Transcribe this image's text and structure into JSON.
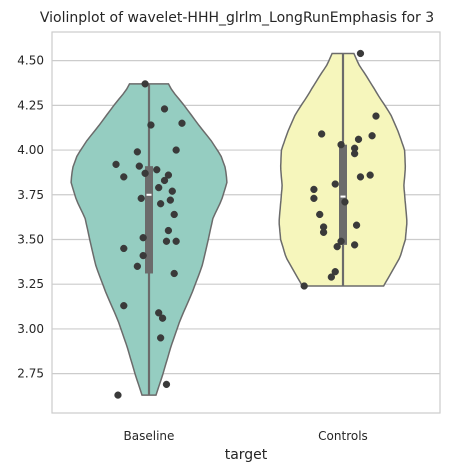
{
  "chart_data": {
    "type": "violin",
    "title": "Violinplot of wavelet-HHH_glrlm_LongRunEmphasis for 3",
    "xlabel": "target",
    "ylabel": "",
    "ylim": [
      2.53,
      4.66
    ],
    "yticks": [
      2.75,
      3.0,
      3.25,
      3.5,
      3.75,
      4.0,
      4.25,
      4.5
    ],
    "ytick_labels": [
      "2.75",
      "3.00",
      "3.25",
      "3.50",
      "3.75",
      "4.00",
      "4.25",
      "4.50"
    ],
    "grid": "horizontal",
    "categories": [
      "Baseline",
      "Controls"
    ],
    "groups": [
      {
        "name": "Baseline",
        "color": "#95cdc1",
        "range": [
          2.63,
          4.37
        ],
        "quartiles": [
          3.31,
          3.75,
          3.91
        ],
        "density": [
          [
            2.63,
            0.09
          ],
          [
            2.75,
            0.18
          ],
          [
            2.9,
            0.28
          ],
          [
            3.05,
            0.4
          ],
          [
            3.2,
            0.55
          ],
          [
            3.35,
            0.68
          ],
          [
            3.5,
            0.76
          ],
          [
            3.62,
            0.82
          ],
          [
            3.72,
            0.93
          ],
          [
            3.82,
            1.0
          ],
          [
            3.9,
            0.98
          ],
          [
            3.97,
            0.92
          ],
          [
            4.05,
            0.8
          ],
          [
            4.15,
            0.62
          ],
          [
            4.25,
            0.45
          ],
          [
            4.33,
            0.3
          ],
          [
            4.37,
            0.25
          ]
        ],
        "points": [
          {
            "x": -0.02,
            "y": 4.37
          },
          {
            "x": 0.08,
            "y": 4.23
          },
          {
            "x": 0.17,
            "y": 4.15
          },
          {
            "x": 0.01,
            "y": 4.14
          },
          {
            "x": -0.06,
            "y": 3.99
          },
          {
            "x": 0.14,
            "y": 4.0
          },
          {
            "x": -0.17,
            "y": 3.92
          },
          {
            "x": -0.05,
            "y": 3.91
          },
          {
            "x": 0.04,
            "y": 3.89
          },
          {
            "x": -0.02,
            "y": 3.87
          },
          {
            "x": 0.1,
            "y": 3.86
          },
          {
            "x": -0.13,
            "y": 3.85
          },
          {
            "x": 0.08,
            "y": 3.83
          },
          {
            "x": 0.05,
            "y": 3.79
          },
          {
            "x": 0.12,
            "y": 3.77
          },
          {
            "x": -0.04,
            "y": 3.73
          },
          {
            "x": 0.11,
            "y": 3.72
          },
          {
            "x": 0.06,
            "y": 3.7
          },
          {
            "x": 0.13,
            "y": 3.64
          },
          {
            "x": 0.1,
            "y": 3.55
          },
          {
            "x": -0.03,
            "y": 3.51
          },
          {
            "x": 0.09,
            "y": 3.49
          },
          {
            "x": 0.14,
            "y": 3.49
          },
          {
            "x": -0.13,
            "y": 3.45
          },
          {
            "x": -0.03,
            "y": 3.41
          },
          {
            "x": -0.06,
            "y": 3.35
          },
          {
            "x": 0.13,
            "y": 3.31
          },
          {
            "x": -0.13,
            "y": 3.13
          },
          {
            "x": 0.05,
            "y": 3.09
          },
          {
            "x": 0.07,
            "y": 3.06
          },
          {
            "x": 0.06,
            "y": 2.95
          },
          {
            "x": 0.09,
            "y": 2.69
          },
          {
            "x": -0.16,
            "y": 2.63
          }
        ]
      },
      {
        "name": "Controls",
        "color": "#f6f6bc",
        "range": [
          3.24,
          4.54
        ],
        "quartiles": [
          3.47,
          3.74,
          4.03
        ],
        "density": [
          [
            3.24,
            0.52
          ],
          [
            3.3,
            0.6
          ],
          [
            3.4,
            0.73
          ],
          [
            3.5,
            0.8
          ],
          [
            3.6,
            0.82
          ],
          [
            3.7,
            0.8
          ],
          [
            3.8,
            0.78
          ],
          [
            3.9,
            0.8
          ],
          [
            4.0,
            0.79
          ],
          [
            4.1,
            0.71
          ],
          [
            4.2,
            0.61
          ],
          [
            4.3,
            0.46
          ],
          [
            4.4,
            0.32
          ],
          [
            4.48,
            0.2
          ],
          [
            4.54,
            0.14
          ]
        ],
        "points": [
          {
            "x": 0.09,
            "y": 4.54
          },
          {
            "x": 0.17,
            "y": 4.19
          },
          {
            "x": -0.11,
            "y": 4.09
          },
          {
            "x": 0.15,
            "y": 4.08
          },
          {
            "x": 0.08,
            "y": 4.06
          },
          {
            "x": -0.01,
            "y": 4.03
          },
          {
            "x": 0.06,
            "y": 4.01
          },
          {
            "x": 0.06,
            "y": 3.98
          },
          {
            "x": 0.14,
            "y": 3.86
          },
          {
            "x": 0.09,
            "y": 3.85
          },
          {
            "x": -0.04,
            "y": 3.81
          },
          {
            "x": -0.15,
            "y": 3.78
          },
          {
            "x": -0.15,
            "y": 3.73
          },
          {
            "x": 0.01,
            "y": 3.71
          },
          {
            "x": -0.12,
            "y": 3.64
          },
          {
            "x": 0.07,
            "y": 3.58
          },
          {
            "x": -0.1,
            "y": 3.57
          },
          {
            "x": -0.1,
            "y": 3.54
          },
          {
            "x": -0.01,
            "y": 3.49
          },
          {
            "x": 0.06,
            "y": 3.47
          },
          {
            "x": -0.03,
            "y": 3.46
          },
          {
            "x": -0.04,
            "y": 3.32
          },
          {
            "x": -0.06,
            "y": 3.29
          },
          {
            "x": -0.2,
            "y": 3.24
          }
        ]
      }
    ]
  }
}
